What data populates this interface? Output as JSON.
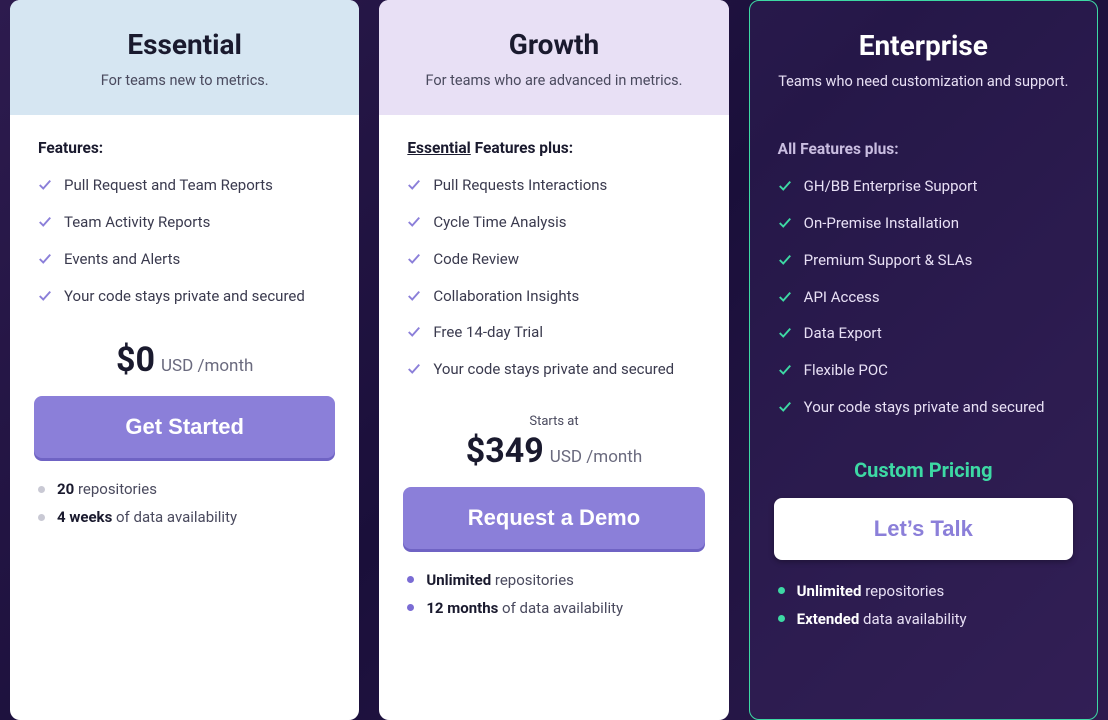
{
  "colors": {
    "page_bg_start": "#2d1b4e",
    "page_bg_end": "#1a0f3a",
    "card_light_bg": "#ffffff",
    "essential_header_bg": "#d6e6f2",
    "growth_header_bg": "#e8e0f5",
    "enterprise_border": "#3dd9a4",
    "check_light": "#8b7fd9",
    "check_enterprise": "#3dd9a4",
    "cta_purple_bg": "#8b7fd9",
    "cta_purple_shadow": "#6f63c4",
    "dot_grey": "#c9c9d4",
    "dot_purple": "#7a6cd4",
    "dot_green": "#3dd9a4"
  },
  "plans": {
    "essential": {
      "title": "Essential",
      "subtitle": "For teams new to metrics.",
      "features_heading": "Features:",
      "features": [
        "Pull Request and Team Reports",
        "Team Activity Reports",
        "Events and Alerts",
        "Your code stays private and secured"
      ],
      "price_amount": "$0",
      "price_unit": "USD /month",
      "cta": "Get Started",
      "footer": [
        {
          "bold": "20",
          "rest": " repositories"
        },
        {
          "bold": "4 weeks",
          "rest": " of data availability"
        }
      ],
      "dot_color": "grey"
    },
    "growth": {
      "title": "Growth",
      "subtitle": "For teams who are advanced in metrics.",
      "features_heading_prefix": "Essential",
      "features_heading_suffix": " Features plus:",
      "features": [
        "Pull Requests Interactions",
        "Cycle Time Analysis",
        "Code Review",
        "Collaboration Insights",
        "Free 14-day Trial",
        "Your code stays private and secured"
      ],
      "starts_at": "Starts at",
      "price_amount": "$349",
      "price_unit": "USD /month",
      "cta": "Request a Demo",
      "footer": [
        {
          "bold": "Unlimited",
          "rest": " repositories"
        },
        {
          "bold": "12 months",
          "rest": " of data availability"
        }
      ],
      "dot_color": "purple"
    },
    "enterprise": {
      "title": "Enterprise",
      "subtitle": "Teams who need customization and support.",
      "features_heading": "All Features plus:",
      "features": [
        "GH/BB Enterprise Support",
        "On-Premise Installation",
        "Premium Support & SLAs",
        "API Access",
        "Data Export",
        "Flexible POC",
        "Your code stays private and secured"
      ],
      "custom_pricing": "Custom Pricing",
      "cta": "Let’s Talk",
      "footer": [
        {
          "bold": "Unlimited",
          "rest": " repositories"
        },
        {
          "bold": "Extended",
          "rest": " data availability"
        }
      ],
      "dot_color": "green"
    }
  }
}
